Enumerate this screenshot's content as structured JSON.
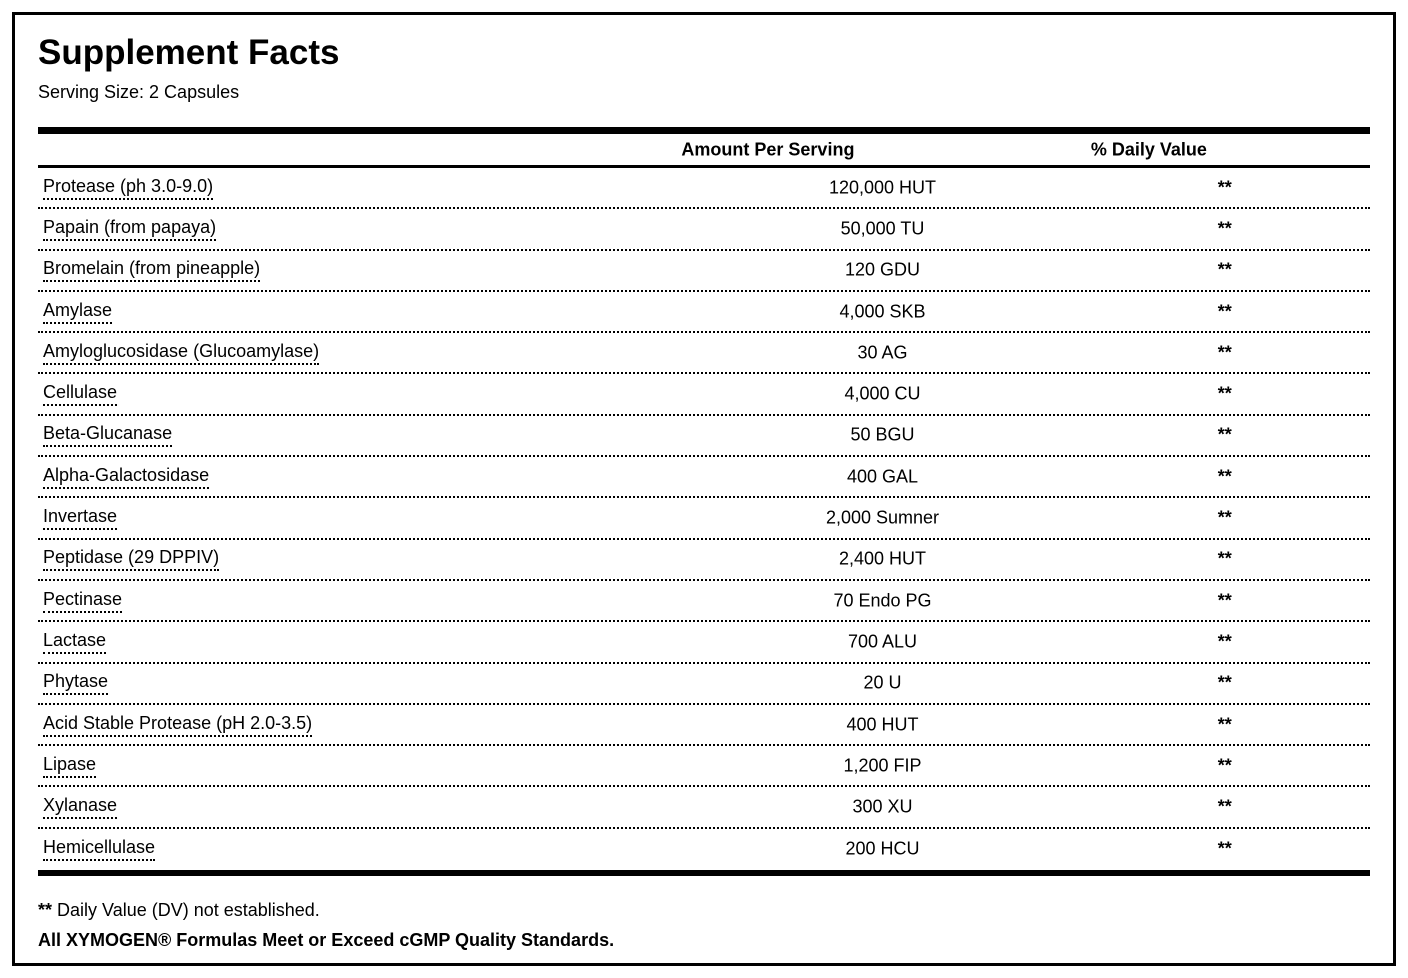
{
  "header": {
    "title": "Supplement Facts",
    "serving_size": "Serving Size: 2 Capsules"
  },
  "table": {
    "columns": {
      "amount": "Amount Per Serving",
      "daily_value": "% Daily Value"
    },
    "rows": [
      {
        "name": "Protease (ph 3.0-9.0)",
        "amount": "120,000 HUT",
        "dv": "**"
      },
      {
        "name": "Papain (from papaya)",
        "amount": "50,000 TU",
        "dv": "**"
      },
      {
        "name": "Bromelain (from pineapple)",
        "amount": "120 GDU",
        "dv": "**"
      },
      {
        "name": "Amylase",
        "amount": "4,000 SKB",
        "dv": "**"
      },
      {
        "name": "Amyloglucosidase (Glucoamylase)",
        "amount": "30 AG",
        "dv": "**"
      },
      {
        "name": "Cellulase",
        "amount": "4,000 CU",
        "dv": "**"
      },
      {
        "name": "Beta-Glucanase",
        "amount": "50 BGU",
        "dv": "**"
      },
      {
        "name": "Alpha-Galactosidase",
        "amount": "400 GAL",
        "dv": "**"
      },
      {
        "name": "Invertase",
        "amount": "2,000 Sumner",
        "dv": "**"
      },
      {
        "name": "Peptidase (29 DPPIV)",
        "amount": "2,400 HUT",
        "dv": "**"
      },
      {
        "name": "Pectinase",
        "amount": "70 Endo PG",
        "dv": "**"
      },
      {
        "name": "Lactase",
        "amount": "700 ALU",
        "dv": "**"
      },
      {
        "name": "Phytase",
        "amount": "20 U",
        "dv": "**"
      },
      {
        "name": "Acid Stable Protease (pH 2.0-3.5)",
        "amount": "400 HUT",
        "dv": "**"
      },
      {
        "name": "Lipase",
        "amount": "1,200 FIP",
        "dv": "**"
      },
      {
        "name": "Xylanase",
        "amount": "300 XU",
        "dv": "**"
      },
      {
        "name": "Hemicellulase",
        "amount": "200 HCU",
        "dv": "**"
      }
    ]
  },
  "footer": {
    "dv_note_stars": "**",
    "dv_note_text": " Daily Value (DV) not established.",
    "gmp_note": "All XYMOGEN® Formulas Meet or Exceed cGMP Quality Standards."
  },
  "colors": {
    "ink": "#000000",
    "background": "#ffffff"
  }
}
